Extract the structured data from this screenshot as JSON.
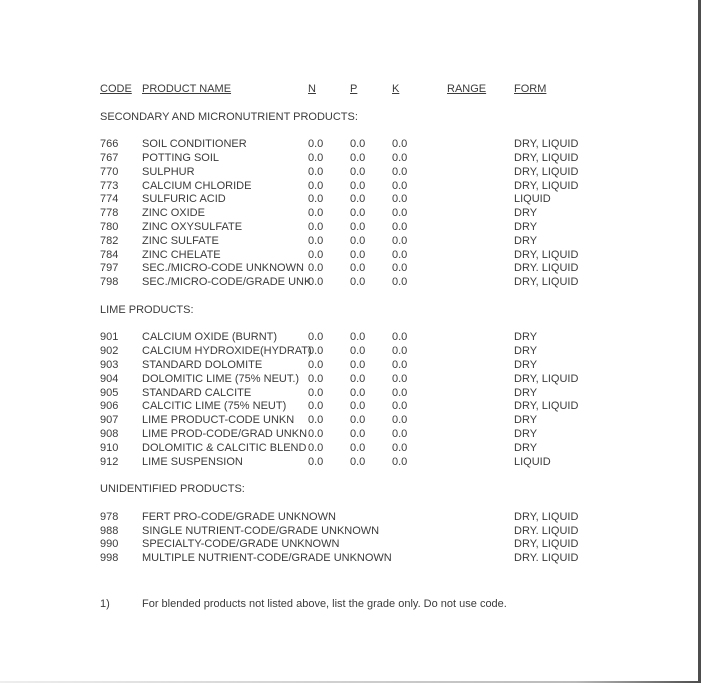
{
  "page": {
    "background": "#ffffff",
    "text_color": "#3b3b3b",
    "edge_color": "#4d4d4d"
  },
  "table": {
    "headers": [
      "CODE",
      "PRODUCT NAME",
      "N",
      "P",
      "K",
      "RANGE",
      "FORM"
    ],
    "sections": [
      {
        "title": "SECONDARY AND MICRONUTRIENT PRODUCTS:",
        "rows": [
          {
            "code": "766",
            "name": "SOIL CONDITIONER",
            "n": "0.0",
            "p": "0.0",
            "k": "0.0",
            "range": "",
            "form": "DRY, LIQUID"
          },
          {
            "code": "767",
            "name": "POTTING SOIL",
            "n": "0.0",
            "p": "0.0",
            "k": "0.0",
            "range": "",
            "form": "DRY, LIQUID"
          },
          {
            "code": "770",
            "name": "SULPHUR",
            "n": "0.0",
            "p": "0.0",
            "k": "0.0",
            "range": "",
            "form": "DRY, LIQUID"
          },
          {
            "code": "773",
            "name": "CALCIUM CHLORIDE",
            "n": "0.0",
            "p": "0.0",
            "k": "0.0",
            "range": "",
            "form": "DRY, LIQUID"
          },
          {
            "code": "774",
            "name": "SULFURIC ACID",
            "n": "0.0",
            "p": "0.0",
            "k": "0.0",
            "range": "",
            "form": "LIQUID"
          },
          {
            "code": "778",
            "name": "ZINC OXIDE",
            "n": "0.0",
            "p": "0.0",
            "k": "0.0",
            "range": "",
            "form": "DRY"
          },
          {
            "code": "780",
            "name": "ZINC OXYSULFATE",
            "n": "0.0",
            "p": "0.0",
            "k": "0.0",
            "range": "",
            "form": "DRY"
          },
          {
            "code": "782",
            "name": "ZINC SULFATE",
            "n": "0.0",
            "p": "0.0",
            "k": "0.0",
            "range": "",
            "form": "DRY"
          },
          {
            "code": "784",
            "name": "ZINC CHELATE",
            "n": "0.0",
            "p": "0.0",
            "k": "0.0",
            "range": "",
            "form": "DRY, LIQUID"
          },
          {
            "code": "797",
            "name": "SEC./MICRO-CODE UNKNOWN",
            "n": "0.0",
            "p": "0.0",
            "k": "0.0",
            "range": "",
            "form": "DRY. LIQUID"
          },
          {
            "code": "798",
            "name": "SEC./MICRO-CODE/GRADE UNK",
            "n": "0.0",
            "p": "0.0",
            "k": "0.0",
            "range": "",
            "form": "DRY, LIQUID"
          }
        ]
      },
      {
        "title": "LIME PRODUCTS:",
        "rows": [
          {
            "code": "901",
            "name": "CALCIUM OXIDE (BURNT)",
            "n": "0.0",
            "p": "0.0",
            "k": "0.0",
            "range": "",
            "form": "DRY"
          },
          {
            "code": "902",
            "name": "CALCIUM HYDROXIDE(HYDRAT)",
            "n": "0.0",
            "p": "0.0",
            "k": "0.0",
            "range": "",
            "form": "DRY"
          },
          {
            "code": "903",
            "name": "STANDARD DOLOMITE",
            "n": "0.0",
            "p": "0.0",
            "k": "0.0",
            "range": "",
            "form": "DRY"
          },
          {
            "code": "904",
            "name": "DOLOMITIC LIME (75% NEUT.)",
            "n": "0.0",
            "p": "0.0",
            "k": "0.0",
            "range": "",
            "form": "DRY, LIQUID"
          },
          {
            "code": "905",
            "name": "STANDARD CALCITE",
            "n": "0.0",
            "p": "0.0",
            "k": "0.0",
            "range": "",
            "form": "DRY"
          },
          {
            "code": "906",
            "name": "CALCITIC LIME (75% NEUT)",
            "n": "0.0",
            "p": "0.0",
            "k": "0.0",
            "range": "",
            "form": "DRY, LIQUID"
          },
          {
            "code": "907",
            "name": "LIME PRODUCT-CODE UNKN",
            "n": "0.0",
            "p": "0.0",
            "k": "0.0",
            "range": "",
            "form": "DRY"
          },
          {
            "code": "908",
            "name": "LIME PROD-CODE/GRAD UNKN",
            "n": "0.0",
            "p": "0.0",
            "k": "0.0",
            "range": "",
            "form": "DRY"
          },
          {
            "code": "910",
            "name": "DOLOMITIC & CALCITIC BLEND",
            "n": "0.0",
            "p": "0.0",
            "k": "0.0",
            "range": "",
            "form": "DRY"
          },
          {
            "code": "912",
            "name": "LIME SUSPENSION",
            "n": "0.0",
            "p": "0.0",
            "k": "0.0",
            "range": "",
            "form": "LIQUID"
          }
        ]
      },
      {
        "title": "UNIDENTIFIED PRODUCTS:",
        "rows": [
          {
            "code": "978",
            "name": "FERT PRO-CODE/GRADE UNKNOWN",
            "n": "",
            "p": "",
            "k": "",
            "range": "",
            "form": "DRY, LIQUID"
          },
          {
            "code": "988",
            "name": "SINGLE NUTRIENT-CODE/GRADE UNKNOWN",
            "n": "",
            "p": "",
            "k": "",
            "range": "",
            "form": "DRY. LIQUID"
          },
          {
            "code": "990",
            "name": "SPECIALTY-CODE/GRADE UNKNOWN",
            "n": "",
            "p": "",
            "k": "",
            "range": "",
            "form": "DRY, LIQUID"
          },
          {
            "code": "998",
            "name": "MULTIPLE NUTRIENT-CODE/GRADE UNKNOWN",
            "n": "",
            "p": "",
            "k": "",
            "range": "",
            "form": "DRY. LIQUID"
          }
        ]
      }
    ]
  },
  "footnote": {
    "marker": "1)",
    "text": "For blended products not listed above, list the grade only. Do not use code."
  }
}
